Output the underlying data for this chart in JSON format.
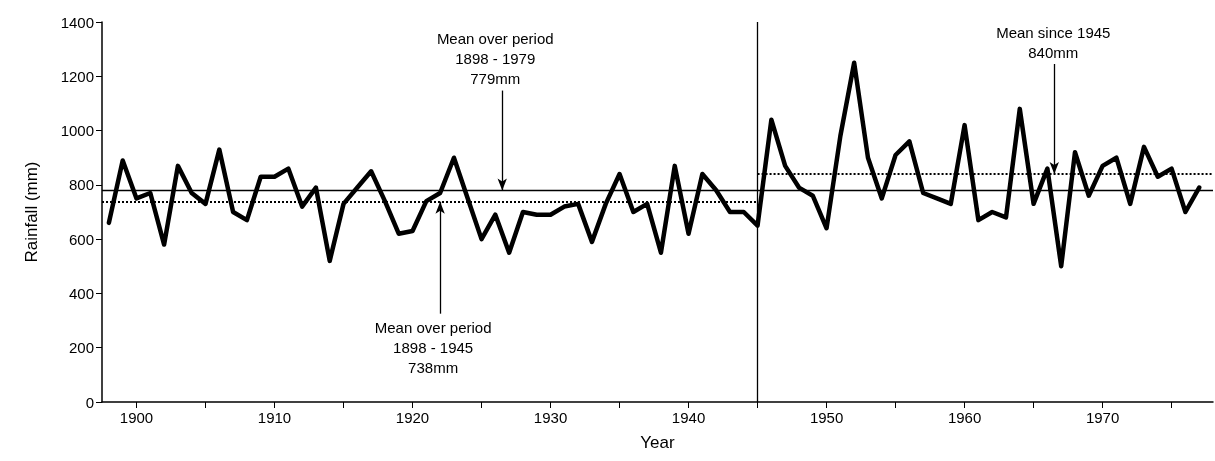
{
  "chart_data": {
    "type": "line",
    "xlabel": "Year",
    "ylabel": "Rainfall (mm)",
    "x": [
      1898,
      1899,
      1900,
      1901,
      1902,
      1903,
      1904,
      1905,
      1906,
      1907,
      1908,
      1909,
      1910,
      1911,
      1912,
      1913,
      1914,
      1915,
      1916,
      1917,
      1918,
      1919,
      1920,
      1921,
      1922,
      1923,
      1924,
      1925,
      1926,
      1927,
      1928,
      1929,
      1930,
      1931,
      1932,
      1933,
      1934,
      1935,
      1936,
      1937,
      1938,
      1939,
      1940,
      1941,
      1942,
      1943,
      1944,
      1945,
      1946,
      1947,
      1948,
      1949,
      1950,
      1951,
      1952,
      1953,
      1954,
      1955,
      1956,
      1957,
      1958,
      1959,
      1960,
      1961,
      1962,
      1963,
      1964,
      1965,
      1966,
      1967,
      1968,
      1969,
      1970,
      1971,
      1972,
      1973,
      1974,
      1975,
      1976,
      1977
    ],
    "series": [
      {
        "color": "#000000",
        "values": [
          660,
          890,
          750,
          770,
          580,
          870,
          770,
          730,
          930,
          700,
          670,
          830,
          830,
          860,
          720,
          790,
          520,
          730,
          790,
          850,
          740,
          620,
          630,
          740,
          770,
          900,
          750,
          600,
          690,
          550,
          700,
          690,
          690,
          720,
          730,
          590,
          730,
          840,
          700,
          730,
          550,
          870,
          620,
          840,
          780,
          700,
          700,
          650,
          1040,
          870,
          790,
          760,
          640,
          980,
          1250,
          900,
          750,
          910,
          960,
          770,
          750,
          730,
          1020,
          670,
          700,
          680,
          1080,
          730,
          860,
          500,
          920,
          760,
          870,
          900,
          730,
          940,
          830,
          860,
          700,
          790
        ]
      }
    ],
    "xlim": [
      1897.5,
      1978
    ],
    "ylim": [
      0,
      1400
    ],
    "xticks": [
      {
        "value": 1900,
        "label": "1900"
      },
      {
        "value": 1905,
        "label": null
      },
      {
        "value": 1910,
        "label": "1910"
      },
      {
        "value": 1915,
        "label": null
      },
      {
        "value": 1920,
        "label": "1920"
      },
      {
        "value": 1925,
        "label": null
      },
      {
        "value": 1930,
        "label": "1930"
      },
      {
        "value": 1935,
        "label": null
      },
      {
        "value": 1940,
        "label": "1940"
      },
      {
        "value": 1945,
        "label": null
      },
      {
        "value": 1950,
        "label": "1950"
      },
      {
        "value": 1955,
        "label": null
      },
      {
        "value": 1960,
        "label": "1960"
      },
      {
        "value": 1965,
        "label": null
      },
      {
        "value": 1970,
        "label": "1970"
      },
      {
        "value": 1975,
        "label": null
      }
    ],
    "yticks": [
      0,
      200,
      400,
      600,
      800,
      1000,
      1200,
      1400
    ],
    "grid": false,
    "marker": "none",
    "line_style": "solid",
    "ref_lines": [
      {
        "axis": "x",
        "value": 1945,
        "color": "#000000",
        "line_style": "solid"
      },
      {
        "axis": "y",
        "value": 779,
        "color": "#000000",
        "line_style": "solid"
      },
      {
        "axis": "y",
        "value": 738,
        "color": "#000000",
        "line_style": "dotted"
      },
      {
        "axis": "y",
        "value": 840,
        "color": "#000000",
        "line_style": "dotted"
      }
    ],
    "annotations": [
      {
        "text": "Mean over period\n1898 - 1979\n779mm",
        "x": 1926.5,
        "y": 779
      },
      {
        "text": "Mean over period\n1898 - 1945\n738mm",
        "x": 1922,
        "y": 738
      },
      {
        "text": "Mean since 1945\n840mm",
        "x": 1966.5,
        "y": 840
      }
    ]
  }
}
